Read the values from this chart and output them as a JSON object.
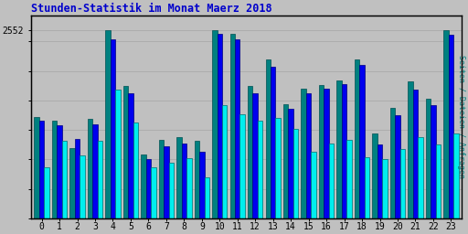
{
  "title": "Stunden-Statistik im Monat Maerz 2018",
  "ylabel_right": "Seiten / Dateien / Anfragen",
  "ytick_label": "2552",
  "hours": [
    0,
    1,
    2,
    3,
    4,
    5,
    6,
    7,
    8,
    9,
    10,
    11,
    12,
    13,
    14,
    15,
    16,
    17,
    18,
    19,
    20,
    21,
    22,
    23
  ],
  "anfragen": [
    1380,
    1330,
    950,
    1350,
    2552,
    1800,
    870,
    1060,
    1100,
    1050,
    2552,
    2500,
    1800,
    2150,
    1550,
    1760,
    1810,
    1870,
    2150,
    1150,
    1500,
    1860,
    1620,
    2552
  ],
  "seiten": [
    1320,
    1260,
    1080,
    1270,
    2430,
    1700,
    800,
    980,
    1020,
    900,
    2500,
    2430,
    1700,
    2050,
    1490,
    1700,
    1760,
    1820,
    2080,
    1000,
    1400,
    1750,
    1530,
    2490
  ],
  "dateien": [
    700,
    1050,
    850,
    1050,
    1750,
    1300,
    700,
    760,
    820,
    560,
    1530,
    1410,
    1330,
    1360,
    1210,
    900,
    1020,
    1060,
    830,
    800,
    940,
    1100,
    1000,
    1150
  ],
  "color_anfragen": "#008080",
  "color_seiten": "#0000EE",
  "color_dateien": "#00EEEE",
  "color_anfragen_edge": "#005050",
  "color_seiten_edge": "#000080",
  "color_dateien_edge": "#007070",
  "bg_color": "#C0C0C0",
  "title_color": "#0000CC",
  "ylabel_color": "#008080",
  "grid_color": "#AAAAAA",
  "ymax": 2750,
  "yticks": [
    2552
  ],
  "bar_width": 0.28
}
